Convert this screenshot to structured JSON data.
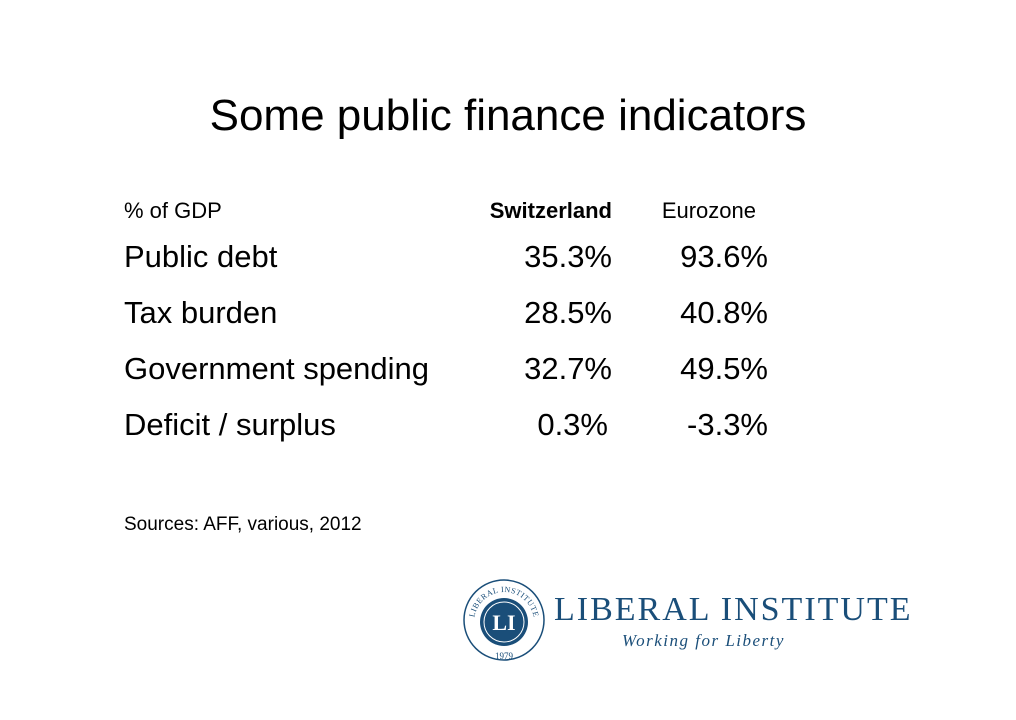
{
  "slide": {
    "title": "Some public finance indicators",
    "table": {
      "header": {
        "label": "% of GDP",
        "col1": "Switzerland",
        "col2": "Eurozone"
      },
      "rows": [
        {
          "label": "Public debt",
          "col1": "35.3%",
          "col2": "93.6%"
        },
        {
          "label": "Tax burden",
          "col1": "28.5%",
          "col2": "40.8%"
        },
        {
          "label": "Government spending",
          "col1": "32.7%",
          "col2": "49.5%"
        },
        {
          "label": "Deficit / surplus",
          "col1": "0.3%",
          "col2": "-3.3%"
        }
      ]
    },
    "sources": "Sources: AFF, various, 2012",
    "logo": {
      "name": "LIBERAL INSTITUTE",
      "tagline": "Working for Liberty",
      "seal_text": "LIBERAL INSTITUTE",
      "seal_initials": "LI",
      "seal_year": "1979",
      "color": "#1a4e79"
    }
  }
}
